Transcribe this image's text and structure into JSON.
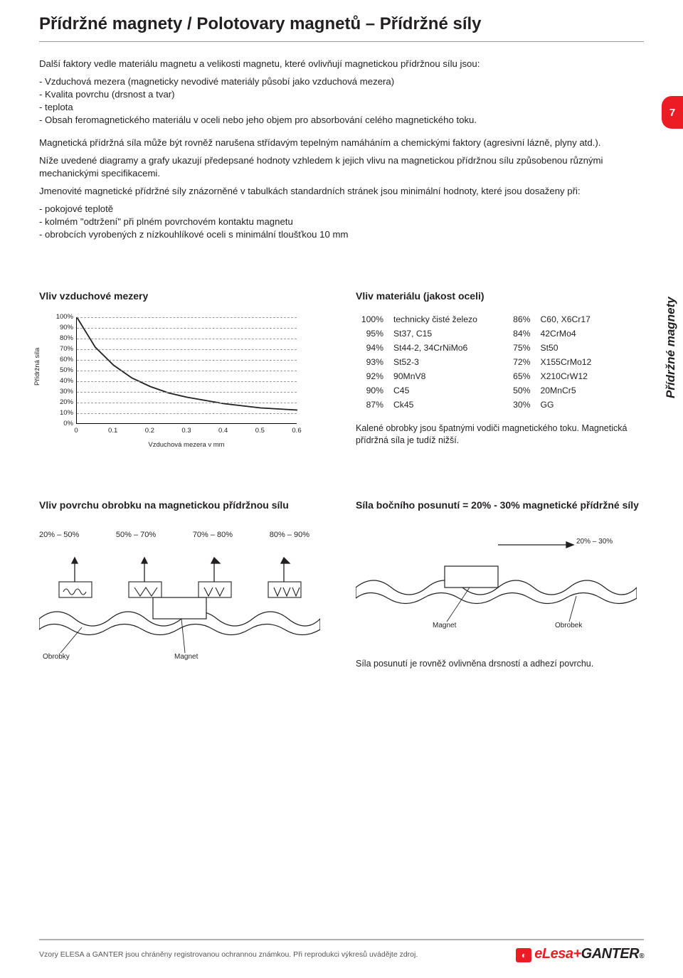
{
  "title": "Přídržné magnety / Polotovary magnetů – Přídržné síly",
  "page_number": "7",
  "side_label": "Přídržné magnety",
  "intro_lead": "Další faktory vedle materiálu magnetu a velikosti magnetu, které ovlivňují magnetickou přídržnou sílu jsou:",
  "intro_bullets": [
    "- Vzduchová mezera (magneticky nevodivé materiály působí jako vzduchová mezera)",
    "- Kvalita povrchu (drsnost a tvar)",
    "- teplota",
    "- Obsah feromagnetického materiálu v oceli nebo jeho objem pro absorbování celého magnetického toku."
  ],
  "para2": "Magnetická přídržná síla může být rovněž narušena střídavým tepelným namáháním a chemickými faktory (agresivní lázně, plyny atd.).",
  "para3": "Níže uvedené diagramy a grafy ukazují předepsané hodnoty vzhledem k jejich vlivu na magnetickou přídržnou sílu způsobenou různými mechanickými specifikacemi.",
  "para4_lead": "Jmenovité magnetické přídržné síly znázorněné v tabulkách standardních stránek jsou minimální hodnoty, které jsou dosaženy při:",
  "para4_bullets": [
    "- pokojové teplotě",
    "- kolmém \"odtržení\" při plném povrchovém kontaktu magnetu",
    "- obrobcích vyrobených z nízkouhlíkové oceli s minimální tloušťkou 10 mm"
  ],
  "air_gap": {
    "title": "Vliv vzduchové mezery",
    "ylabel": "Přídržná síla",
    "xlabel": "Vzduchová mezera v mm",
    "yticks": [
      "100%",
      "90%",
      "80%",
      "70%",
      "60%",
      "50%",
      "40%",
      "30%",
      "20%",
      "10%",
      "0%"
    ],
    "xticks": [
      "0",
      "0.1",
      "0.2",
      "0.3",
      "0.4",
      "0.5",
      "0.6"
    ],
    "curve": [
      {
        "x": 0.0,
        "y": 100
      },
      {
        "x": 0.05,
        "y": 72
      },
      {
        "x": 0.1,
        "y": 55
      },
      {
        "x": 0.15,
        "y": 43
      },
      {
        "x": 0.2,
        "y": 35
      },
      {
        "x": 0.25,
        "y": 29
      },
      {
        "x": 0.3,
        "y": 25
      },
      {
        "x": 0.35,
        "y": 22
      },
      {
        "x": 0.4,
        "y": 19
      },
      {
        "x": 0.45,
        "y": 17
      },
      {
        "x": 0.5,
        "y": 15
      },
      {
        "x": 0.55,
        "y": 14
      },
      {
        "x": 0.6,
        "y": 13
      }
    ],
    "line_color": "#231f20",
    "grid_color": "#9a9a9a",
    "x_domain": [
      0,
      0.6
    ],
    "y_domain": [
      0,
      100
    ]
  },
  "material": {
    "title": "Vliv materiálu (jakost oceli)",
    "rows": [
      {
        "p1": "100%",
        "m1": "technicky čisté železo",
        "p2": "86%",
        "m2": "C60, X6Cr17"
      },
      {
        "p1": "95%",
        "m1": "St37, C15",
        "p2": "84%",
        "m2": "42CrMo4"
      },
      {
        "p1": "94%",
        "m1": "St44-2, 34CrNiMo6",
        "p2": "75%",
        "m2": "St50"
      },
      {
        "p1": "93%",
        "m1": "St52-3",
        "p2": "72%",
        "m2": "X155CrMo12"
      },
      {
        "p1": "92%",
        "m1": "90MnV8",
        "p2": "65%",
        "m2": "X210CrW12"
      },
      {
        "p1": "90%",
        "m1": "C45",
        "p2": "50%",
        "m2": "20MnCr5"
      },
      {
        "p1": "87%",
        "m1": "Ck45",
        "p2": "30%",
        "m2": "GG"
      }
    ],
    "note": "Kalené obrobky jsou špatnými vodiči magnetického toku. Magnetická přídržná síla je tudíž nižší."
  },
  "surface": {
    "title": "Vliv povrchu obrobku na magnetickou přídržnou sílu",
    "ranges": [
      "20% – 50%",
      "50% – 70%",
      "70% – 80%",
      "80% – 90%"
    ],
    "label_workpieces": "Obrobky",
    "label_magnet": "Magnet",
    "roughness_paths": [
      "M0 8 Q4 0 8 8 T16 8 T24 8 T32 8",
      "M2 2 L10 14 L18 2 L26 14 L34 2",
      "M2 2 L8 14 L14 2 M18 2 L24 14 L30 2",
      "M2 2 L7 14 L12 2 M15 2 L20 14 L25 2 M28 2 L33 14 L38 2"
    ]
  },
  "shift": {
    "title": "Síla bočního posunutí = 20% - 30% magnetické přídržné síly",
    "range_label": "20% – 30%",
    "label_magnet": "Magnet",
    "label_workpiece": "Obrobek",
    "note": "Síla posunutí je rovněž ovlivněna drsností a adhezí povrchu."
  },
  "footer": {
    "text": "Vzory ELESA a GANTER jsou chráněny registrovanou ochrannou známkou. Při reprodukci výkresů uvádějte zdroj.",
    "brand1": "eLesa",
    "plus": "+",
    "brand2": "GANTER"
  },
  "colors": {
    "accent": "#ec1c24",
    "text": "#231f20",
    "rule": "#9a9a9a"
  }
}
